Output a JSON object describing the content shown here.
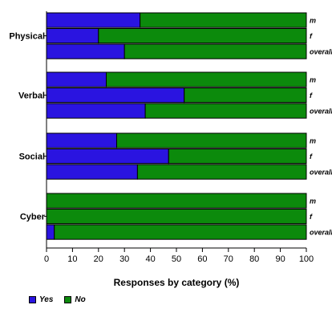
{
  "chart_data": {
    "type": "bar",
    "orientation": "horizontal",
    "stacked": true,
    "xlabel": "Responses by category (%)",
    "xlim": [
      0,
      100
    ],
    "xticks": [
      0,
      10,
      20,
      30,
      40,
      50,
      60,
      70,
      80,
      90,
      100
    ],
    "groups": [
      {
        "label": "Physical",
        "bars": [
          {
            "sublabel": "m",
            "values": [
              36,
              64
            ]
          },
          {
            "sublabel": "f",
            "values": [
              20,
              80
            ]
          },
          {
            "sublabel": "overall",
            "values": [
              30,
              70
            ]
          }
        ]
      },
      {
        "label": "Verbal",
        "bars": [
          {
            "sublabel": "m",
            "values": [
              23,
              77
            ]
          },
          {
            "sublabel": "f",
            "values": [
              53,
              47
            ]
          },
          {
            "sublabel": "overall",
            "values": [
              38,
              62
            ]
          }
        ]
      },
      {
        "label": "Social",
        "bars": [
          {
            "sublabel": "m",
            "values": [
              27,
              73
            ]
          },
          {
            "sublabel": "f",
            "values": [
              47,
              53
            ]
          },
          {
            "sublabel": "overall",
            "values": [
              35,
              65
            ]
          }
        ]
      },
      {
        "label": "Cyber",
        "bars": [
          {
            "sublabel": "m",
            "values": [
              0,
              100
            ]
          },
          {
            "sublabel": "f",
            "values": [
              0,
              100
            ]
          },
          {
            "sublabel": "overall",
            "values": [
              3,
              97
            ]
          }
        ]
      }
    ],
    "series": [
      {
        "name": "Yes",
        "color": "#2a14e0"
      },
      {
        "name": "No",
        "color": "#0c8a0c"
      }
    ],
    "legend_position": "bottom-left"
  }
}
